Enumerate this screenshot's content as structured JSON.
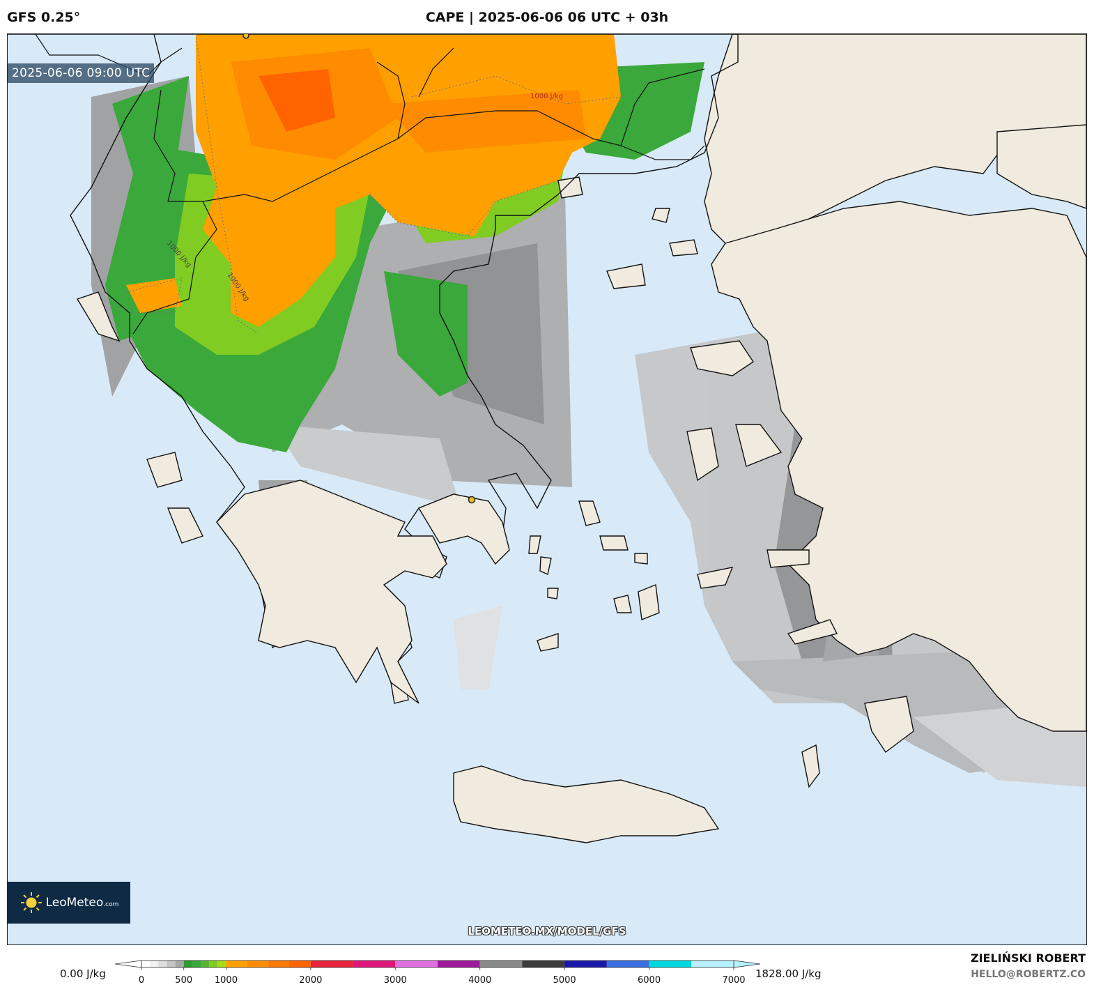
{
  "header": {
    "model": "GFS 0.25°",
    "title": "CAPE | 2025-06-06 06 UTC + 03h"
  },
  "map": {
    "valid_time": "2025-06-06 09:00 UTC",
    "contour_label": "1000 J/kg",
    "watermark": "LEOMETEO.MX/MODEL/GFS",
    "logo_text": "LeoMeteo",
    "logo_suffix": ".com",
    "colors": {
      "sea": "#d8e9f7",
      "land": "#f0eadf",
      "coast": "#111111"
    }
  },
  "colorbar": {
    "min_label": "0.00 J/kg",
    "max_label": "1828.00 J/kg",
    "range": [
      0,
      7000
    ],
    "ticks": [
      "0",
      "500",
      "1000",
      "2000",
      "3000",
      "4000",
      "5000",
      "6000",
      "7000"
    ],
    "tick_values": [
      0,
      500,
      1000,
      2000,
      3000,
      4000,
      5000,
      6000,
      7000
    ],
    "bands": [
      {
        "from": 0,
        "to": 100,
        "color": "#ffffff"
      },
      {
        "from": 100,
        "to": 200,
        "color": "#f2f2f2"
      },
      {
        "from": 200,
        "to": 300,
        "color": "#dedede"
      },
      {
        "from": 300,
        "to": 400,
        "color": "#c4c4c4"
      },
      {
        "from": 400,
        "to": 500,
        "color": "#a8a8a8"
      },
      {
        "from": 500,
        "to": 600,
        "color": "#2e9b2e"
      },
      {
        "from": 600,
        "to": 700,
        "color": "#3aa83a"
      },
      {
        "from": 700,
        "to": 800,
        "color": "#55b830"
      },
      {
        "from": 800,
        "to": 900,
        "color": "#80cc22"
      },
      {
        "from": 900,
        "to": 1000,
        "color": "#a8dc18"
      },
      {
        "from": 1000,
        "to": 1250,
        "color": "#ffa000"
      },
      {
        "from": 1250,
        "to": 1500,
        "color": "#ff8c00"
      },
      {
        "from": 1500,
        "to": 1750,
        "color": "#ff7a00"
      },
      {
        "from": 1750,
        "to": 2000,
        "color": "#ff6400"
      },
      {
        "from": 2000,
        "to": 2500,
        "color": "#e8243c"
      },
      {
        "from": 2500,
        "to": 3000,
        "color": "#e0157a"
      },
      {
        "from": 3000,
        "to": 3500,
        "color": "#e070e0"
      },
      {
        "from": 3500,
        "to": 4000,
        "color": "#a0189c"
      },
      {
        "from": 4000,
        "to": 4500,
        "color": "#8a8a8a"
      },
      {
        "from": 4500,
        "to": 5000,
        "color": "#3c3c3c"
      },
      {
        "from": 5000,
        "to": 5500,
        "color": "#1a18a8"
      },
      {
        "from": 5500,
        "to": 6000,
        "color": "#3a6ee0"
      },
      {
        "from": 6000,
        "to": 6500,
        "color": "#00d8e0"
      },
      {
        "from": 6500,
        "to": 7000,
        "color": "#b8f0ff"
      }
    ]
  },
  "author": {
    "name": "ZIELIŃSKI ROBERT",
    "email": "HELLO@ROBERTZ.CO"
  }
}
